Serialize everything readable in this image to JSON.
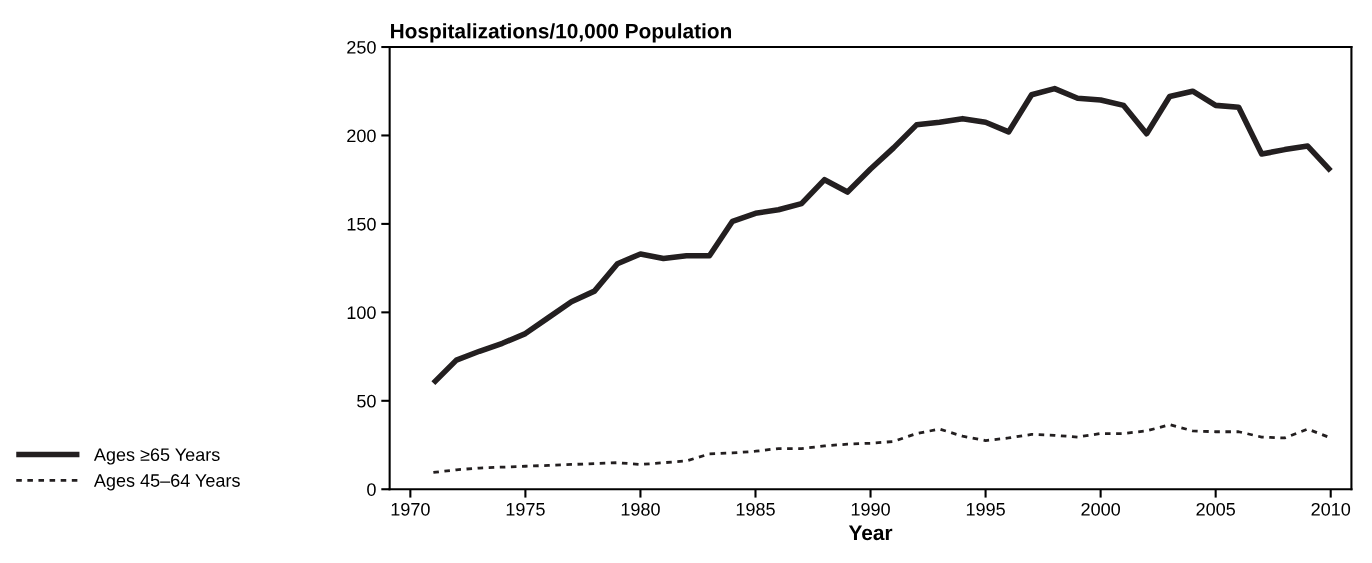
{
  "chart_data": {
    "type": "line",
    "ylabel": "Hospitalizations/10,000 Population",
    "xlabel": "Year",
    "x": [
      1971,
      1972,
      1973,
      1974,
      1975,
      1976,
      1977,
      1978,
      1979,
      1980,
      1981,
      1982,
      1983,
      1984,
      1985,
      1986,
      1987,
      1988,
      1989,
      1990,
      1991,
      1992,
      1993,
      1994,
      1995,
      1996,
      1997,
      1998,
      1999,
      2000,
      2001,
      2002,
      2003,
      2004,
      2005,
      2006,
      2007,
      2008,
      2009,
      2010
    ],
    "series": [
      {
        "name": "Ages ≥65 Years",
        "color": "#231f20",
        "line_style": "solid",
        "values": [
          60,
          73,
          78,
          82.5,
          88,
          97,
          106,
          112,
          127.5,
          133,
          130.5,
          132,
          132,
          151.5,
          156,
          158,
          161.5,
          175,
          168,
          181,
          193,
          206,
          207.5,
          209.5,
          207.5,
          202,
          223,
          226.5,
          221,
          220,
          217,
          201,
          222,
          225,
          217,
          216,
          189.5,
          192,
          194,
          180
        ]
      },
      {
        "name": "Ages 45–64 Years",
        "color": "#231f20",
        "line_style": "dotted",
        "values": [
          9.5,
          11,
          12,
          12.5,
          13,
          13.5,
          14,
          14.5,
          15,
          14,
          15,
          16,
          20,
          20.5,
          21.5,
          23,
          23,
          24.5,
          25.5,
          26,
          27,
          31.5,
          34,
          30,
          27.5,
          29,
          31,
          30.5,
          29.5,
          31.5,
          31.5,
          33,
          36.5,
          33,
          32.5,
          32.5,
          29.5,
          29,
          34,
          29
        ]
      }
    ],
    "xlim": [
      1969.1,
      2010.9
    ],
    "xticks": [
      1970,
      1975,
      1980,
      1985,
      1990,
      1995,
      2000,
      2005,
      2010
    ],
    "ylim": [
      0,
      250
    ],
    "yticks": [
      0,
      50,
      100,
      150,
      200,
      250
    ],
    "grid": false,
    "legend": "bottom left",
    "marker": "none"
  }
}
